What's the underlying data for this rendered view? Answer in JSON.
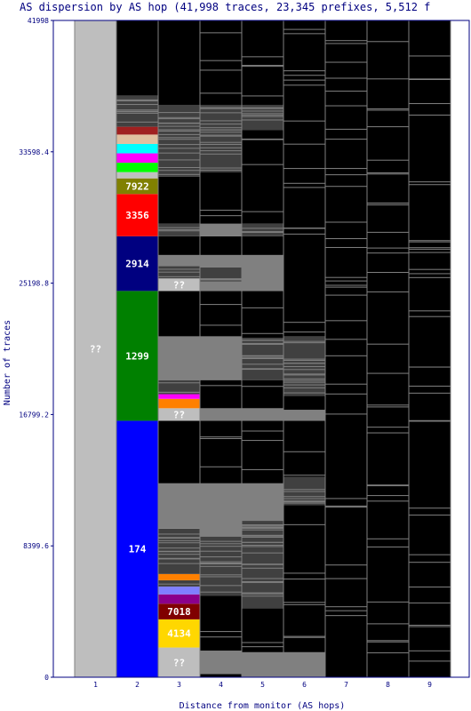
{
  "chart_data": {
    "type": "bar",
    "title": "AS dispersion by AS hop (41,998 traces, 23,345 prefixes, 5,512 f",
    "xlabel": "Distance from monitor (AS hops)",
    "ylabel": "Number of traces",
    "ylim": [
      0,
      41998
    ],
    "yticks": [
      "0",
      "8399.6",
      "16799.2",
      "25198.8",
      "33598.4",
      "41998"
    ],
    "categories": [
      "1",
      "2",
      "3",
      "4",
      "5",
      "6",
      "7",
      "8",
      "9"
    ],
    "grid": false,
    "columns": [
      {
        "hop": "1",
        "segments": [
          {
            "from": 0,
            "to": 41998,
            "color": "#bebebe",
            "label": "??"
          }
        ]
      },
      {
        "hop": "2",
        "segments": [
          {
            "from": 0,
            "to": 16400,
            "color": "#0000ff",
            "label": "174"
          },
          {
            "from": 16400,
            "to": 24700,
            "color": "#008000",
            "label": "1299"
          },
          {
            "from": 24700,
            "to": 28200,
            "color": "#000080",
            "label": "2914"
          },
          {
            "from": 28200,
            "to": 30900,
            "color": "#ff0000",
            "label": "3356"
          },
          {
            "from": 30900,
            "to": 31900,
            "color": "#808000",
            "label": "7922"
          },
          {
            "from": 31900,
            "to": 32300,
            "color": "#c0c0c0"
          },
          {
            "from": 32300,
            "to": 32900,
            "color": "#00ff00"
          },
          {
            "from": 32900,
            "to": 33500,
            "color": "#ff00ff"
          },
          {
            "from": 33500,
            "to": 34100,
            "color": "#00ffff"
          },
          {
            "from": 34100,
            "to": 34700,
            "color": "#e0c0a0"
          },
          {
            "from": 34700,
            "to": 35200,
            "color": "#a02020"
          },
          {
            "from": 35200,
            "to": 37200,
            "color": "#404040"
          },
          {
            "from": 37200,
            "to": 41998,
            "color": "#000000"
          }
        ]
      },
      {
        "hop": "3",
        "segments": [
          {
            "from": 0,
            "to": 1900,
            "color": "#bebebe",
            "label": "??"
          },
          {
            "from": 1900,
            "to": 3700,
            "color": "#ffd700",
            "label": "4134"
          },
          {
            "from": 3700,
            "to": 4700,
            "color": "#800000",
            "label": "7018"
          },
          {
            "from": 4700,
            "to": 5300,
            "color": "#8b008b"
          },
          {
            "from": 5300,
            "to": 5800,
            "color": "#8080ff"
          },
          {
            "from": 5800,
            "to": 6200,
            "color": "#404040"
          },
          {
            "from": 6200,
            "to": 6600,
            "color": "#ff8000"
          },
          {
            "from": 6600,
            "to": 9500,
            "color": "#404040"
          },
          {
            "from": 9500,
            "to": 12400,
            "color": "#808080"
          },
          {
            "from": 12400,
            "to": 16400,
            "color": "#000000"
          },
          {
            "from": 16400,
            "to": 17200,
            "color": "#bebebe",
            "label": "??"
          },
          {
            "from": 17200,
            "to": 17800,
            "color": "#ff8000"
          },
          {
            "from": 17800,
            "to": 18100,
            "color": "#ff00ff"
          },
          {
            "from": 18100,
            "to": 19000,
            "color": "#404040"
          },
          {
            "from": 19000,
            "to": 21800,
            "color": "#808080"
          },
          {
            "from": 21800,
            "to": 24700,
            "color": "#000000"
          },
          {
            "from": 24700,
            "to": 25500,
            "color": "#bebebe",
            "label": "??"
          },
          {
            "from": 25500,
            "to": 26300,
            "color": "#404040"
          },
          {
            "from": 26300,
            "to": 27000,
            "color": "#808080"
          },
          {
            "from": 27000,
            "to": 28200,
            "color": "#000000"
          },
          {
            "from": 28200,
            "to": 29000,
            "color": "#404040"
          },
          {
            "from": 29000,
            "to": 32000,
            "color": "#000000"
          },
          {
            "from": 32000,
            "to": 36600,
            "color": "#404040"
          },
          {
            "from": 36600,
            "to": 41998,
            "color": "#000000"
          }
        ]
      },
      {
        "hop": "4",
        "segments": [
          {
            "from": 0,
            "to": 200,
            "color": "#000000"
          },
          {
            "from": 200,
            "to": 1700,
            "color": "#808080"
          },
          {
            "from": 1700,
            "to": 5200,
            "color": "#000000"
          },
          {
            "from": 5200,
            "to": 9000,
            "color": "#404040"
          },
          {
            "from": 9000,
            "to": 12400,
            "color": "#808080"
          },
          {
            "from": 12400,
            "to": 16400,
            "color": "#000000"
          },
          {
            "from": 16400,
            "to": 17200,
            "color": "#808080"
          },
          {
            "from": 17200,
            "to": 19000,
            "color": "#000000"
          },
          {
            "from": 19000,
            "to": 21800,
            "color": "#808080"
          },
          {
            "from": 21800,
            "to": 24700,
            "color": "#000000"
          },
          {
            "from": 24700,
            "to": 25300,
            "color": "#808080"
          },
          {
            "from": 25300,
            "to": 26200,
            "color": "#404040"
          },
          {
            "from": 26200,
            "to": 27000,
            "color": "#808080"
          },
          {
            "from": 27000,
            "to": 28200,
            "color": "#000000"
          },
          {
            "from": 28200,
            "to": 29000,
            "color": "#808080"
          },
          {
            "from": 29000,
            "to": 32300,
            "color": "#000000"
          },
          {
            "from": 32300,
            "to": 36600,
            "color": "#404040"
          },
          {
            "from": 36600,
            "to": 41998,
            "color": "#000000"
          }
        ]
      },
      {
        "hop": "5",
        "segments": [
          {
            "from": 0,
            "to": 1600,
            "color": "#808080"
          },
          {
            "from": 1600,
            "to": 4400,
            "color": "#000000"
          },
          {
            "from": 4400,
            "to": 10000,
            "color": "#404040"
          },
          {
            "from": 10000,
            "to": 12400,
            "color": "#808080"
          },
          {
            "from": 12400,
            "to": 16400,
            "color": "#000000"
          },
          {
            "from": 16400,
            "to": 17200,
            "color": "#808080"
          },
          {
            "from": 17200,
            "to": 19000,
            "color": "#000000"
          },
          {
            "from": 19000,
            "to": 21700,
            "color": "#404040"
          },
          {
            "from": 21700,
            "to": 24700,
            "color": "#000000"
          },
          {
            "from": 24700,
            "to": 27000,
            "color": "#808080"
          },
          {
            "from": 27000,
            "to": 28200,
            "color": "#000000"
          },
          {
            "from": 28200,
            "to": 29000,
            "color": "#404040"
          },
          {
            "from": 29000,
            "to": 35000,
            "color": "#000000"
          },
          {
            "from": 35000,
            "to": 36600,
            "color": "#404040"
          },
          {
            "from": 36600,
            "to": 41998,
            "color": "#000000"
          }
        ]
      },
      {
        "hop": "6",
        "segments": [
          {
            "from": 0,
            "to": 1600,
            "color": "#808080"
          },
          {
            "from": 1600,
            "to": 11000,
            "color": "#000000"
          },
          {
            "from": 11000,
            "to": 12800,
            "color": "#404040"
          },
          {
            "from": 12800,
            "to": 16400,
            "color": "#000000"
          },
          {
            "from": 16400,
            "to": 17100,
            "color": "#808080"
          },
          {
            "from": 17100,
            "to": 18000,
            "color": "#000000"
          },
          {
            "from": 18000,
            "to": 21800,
            "color": "#404040"
          },
          {
            "from": 21800,
            "to": 41998,
            "color": "#000000"
          }
        ]
      },
      {
        "hop": "7",
        "segments": [
          {
            "from": 0,
            "to": 41998,
            "color": "#000000"
          }
        ]
      },
      {
        "hop": "8",
        "segments": [
          {
            "from": 0,
            "to": 41998,
            "color": "#000000"
          }
        ]
      },
      {
        "hop": "9",
        "segments": [
          {
            "from": 0,
            "to": 41998,
            "color": "#000000"
          }
        ]
      }
    ]
  },
  "colors": {
    "axis": "#000080",
    "plot_background": "#ffffff",
    "column_separator": "#808080",
    "stripe_light": "#808080",
    "segment_label": "#ffffff"
  }
}
